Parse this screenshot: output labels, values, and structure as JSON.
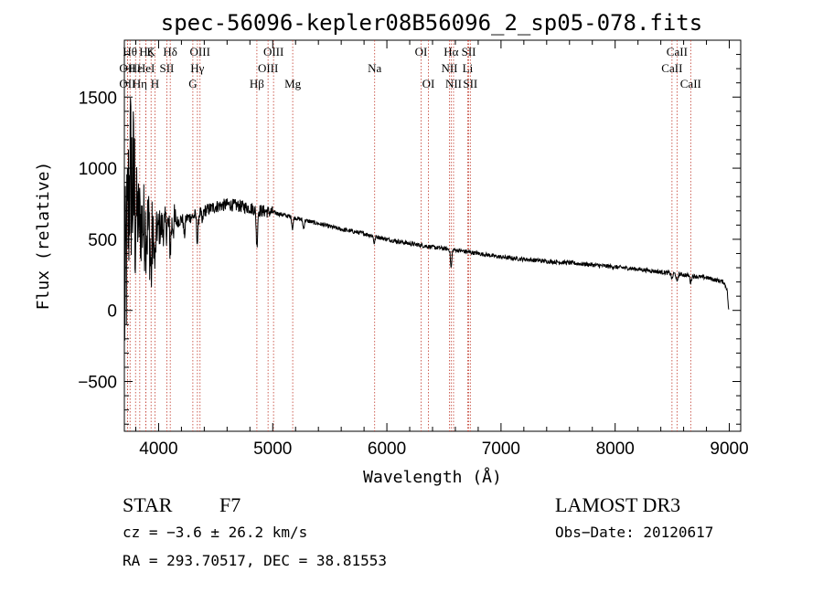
{
  "chart_data": {
    "type": "line",
    "title": "spec-56096-kepler08B56096_2_sp05-078.fits",
    "xlabel": "Wavelength (Å)",
    "ylabel": "Flux (relative)",
    "xlim": [
      3700,
      9100
    ],
    "ylim": [
      -850,
      1900
    ],
    "xticks": [
      4000,
      5000,
      6000,
      7000,
      8000,
      9000
    ],
    "yticks": [
      -500,
      0,
      500,
      1000,
      1500
    ],
    "series": [
      {
        "name": "flux",
        "anchors": [
          [
            3700,
            0
          ],
          [
            3720,
            400
          ],
          [
            3750,
            1000
          ],
          [
            3780,
            800
          ],
          [
            3820,
            650
          ],
          [
            3860,
            600
          ],
          [
            3900,
            580
          ],
          [
            3950,
            560
          ],
          [
            4000,
            580
          ],
          [
            4100,
            600
          ],
          [
            4200,
            640
          ],
          [
            4300,
            660
          ],
          [
            4400,
            700
          ],
          [
            4500,
            730
          ],
          [
            4600,
            745
          ],
          [
            4700,
            735
          ],
          [
            4800,
            720
          ],
          [
            4900,
            700
          ],
          [
            5000,
            690
          ],
          [
            5200,
            650
          ],
          [
            5400,
            610
          ],
          [
            5600,
            570
          ],
          [
            5800,
            540
          ],
          [
            6000,
            500
          ],
          [
            6200,
            470
          ],
          [
            6400,
            445
          ],
          [
            6600,
            425
          ],
          [
            6800,
            400
          ],
          [
            7000,
            375
          ],
          [
            7200,
            360
          ],
          [
            7400,
            345
          ],
          [
            7600,
            335
          ],
          [
            7800,
            320
          ],
          [
            8000,
            305
          ],
          [
            8200,
            290
          ],
          [
            8400,
            270
          ],
          [
            8600,
            250
          ],
          [
            8800,
            230
          ],
          [
            8950,
            200
          ],
          [
            8980,
            150
          ],
          [
            8995,
            0
          ]
        ],
        "dips": [
          [
            3934,
            -300
          ],
          [
            3968,
            -250
          ],
          [
            4102,
            -150
          ],
          [
            4226,
            -120
          ],
          [
            4340,
            -200
          ],
          [
            4383,
            -80
          ],
          [
            4861,
            -250
          ],
          [
            5173,
            -80
          ],
          [
            5270,
            -60
          ],
          [
            5890,
            -50
          ],
          [
            6563,
            -130
          ],
          [
            8498,
            -40
          ],
          [
            8542,
            -60
          ],
          [
            8662,
            -50
          ]
        ]
      }
    ],
    "spectral_lines": [
      {
        "wavelength": 3727,
        "label": "OII",
        "row": 2
      },
      {
        "wavelength": 3727,
        "label": "OII",
        "row": 3
      },
      {
        "wavelength": 3750,
        "label": "Hθ",
        "row": 1
      },
      {
        "wavelength": 3798,
        "label": "Hε",
        "row": 2
      },
      {
        "wavelength": 3835,
        "label": "Hη",
        "row": 3
      },
      {
        "wavelength": 3889,
        "label": "Hζ",
        "row": 1
      },
      {
        "wavelength": 3889,
        "label": "HeI",
        "row": 2
      },
      {
        "wavelength": 3934,
        "label": "K",
        "row": 1
      },
      {
        "wavelength": 3968,
        "label": "H",
        "row": 3
      },
      {
        "wavelength": 4072,
        "label": "SII",
        "row": 2
      },
      {
        "wavelength": 4102,
        "label": "Hδ",
        "row": 1
      },
      {
        "wavelength": 4300,
        "label": "G",
        "row": 3
      },
      {
        "wavelength": 4340,
        "label": "Hγ",
        "row": 2
      },
      {
        "wavelength": 4363,
        "label": "OIII",
        "row": 1
      },
      {
        "wavelength": 4861,
        "label": "Hβ",
        "row": 3
      },
      {
        "wavelength": 4959,
        "label": "OIII",
        "row": 2
      },
      {
        "wavelength": 5007,
        "label": "OIII",
        "row": 1
      },
      {
        "wavelength": 5175,
        "label": "Mg",
        "row": 3
      },
      {
        "wavelength": 5893,
        "label": "Na",
        "row": 2
      },
      {
        "wavelength": 6300,
        "label": "OI",
        "row": 1
      },
      {
        "wavelength": 6364,
        "label": "OI",
        "row": 3
      },
      {
        "wavelength": 6548,
        "label": "NII",
        "row": 2
      },
      {
        "wavelength": 6563,
        "label": "Hα",
        "row": 1
      },
      {
        "wavelength": 6584,
        "label": "NII",
        "row": 3
      },
      {
        "wavelength": 6708,
        "label": "Li",
        "row": 2
      },
      {
        "wavelength": 6717,
        "label": "SII",
        "row": 1
      },
      {
        "wavelength": 6731,
        "label": "SII",
        "row": 3
      },
      {
        "wavelength": 8498,
        "label": "CaII",
        "row": 2
      },
      {
        "wavelength": 8542,
        "label": "CaII",
        "row": 1
      },
      {
        "wavelength": 8662,
        "label": "CaII",
        "row": 3
      }
    ]
  },
  "info": {
    "object_class": "STAR",
    "subclass": "F7",
    "survey": "LAMOST DR3",
    "cz": "cz = −3.6 ± 26.2 km/s",
    "obs_date": "Obs−Date: 20120617",
    "coords": "RA = 293.70517, DEC =  38.81553"
  },
  "colors": {
    "spectrum": "#000000",
    "line_marker": "#c0392b",
    "axis": "#000000",
    "background": "#ffffff"
  }
}
